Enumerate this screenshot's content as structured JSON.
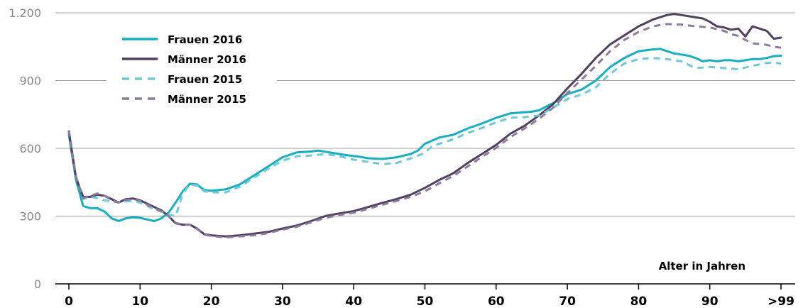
{
  "chart_data": {
    "type": "line",
    "title": "",
    "xlabel": "Alter in Jahren",
    "ylabel": "",
    "xlim": [
      0,
      100
    ],
    "ylim": [
      0,
      1200
    ],
    "grid": "horizontal",
    "legend_position": "top-left",
    "x_ticks": [
      0,
      10,
      20,
      30,
      40,
      50,
      60,
      70,
      80,
      90,
      100
    ],
    "x_tick_labels": [
      "0",
      "10",
      "20",
      "30",
      "40",
      "50",
      "60",
      "70",
      "80",
      "90",
      ">99"
    ],
    "y_ticks": [
      0,
      300,
      600,
      900,
      1200
    ],
    "y_tick_labels": [
      "0",
      "300",
      "600",
      "900",
      "1.200"
    ],
    "series": [
      {
        "name": "Frauen 2016",
        "color": "#18aec2",
        "dashed": false,
        "points": [
          [
            0,
            660
          ],
          [
            1,
            460
          ],
          [
            2,
            345
          ],
          [
            3,
            335
          ],
          [
            4,
            335
          ],
          [
            5,
            320
          ],
          [
            6,
            290
          ],
          [
            7,
            278
          ],
          [
            8,
            290
          ],
          [
            9,
            295
          ],
          [
            10,
            292
          ],
          [
            11,
            285
          ],
          [
            12,
            278
          ],
          [
            13,
            290
          ],
          [
            14,
            315
          ],
          [
            15,
            360
          ],
          [
            16,
            410
          ],
          [
            17,
            443
          ],
          [
            18,
            440
          ],
          [
            19,
            415
          ],
          [
            20,
            412
          ],
          [
            22,
            418
          ],
          [
            24,
            440
          ],
          [
            26,
            480
          ],
          [
            28,
            520
          ],
          [
            30,
            560
          ],
          [
            32,
            582
          ],
          [
            34,
            586
          ],
          [
            35,
            590
          ],
          [
            37,
            580
          ],
          [
            39,
            570
          ],
          [
            41,
            562
          ],
          [
            42,
            556
          ],
          [
            44,
            553
          ],
          [
            46,
            560
          ],
          [
            48,
            575
          ],
          [
            49,
            590
          ],
          [
            50,
            620
          ],
          [
            52,
            648
          ],
          [
            54,
            660
          ],
          [
            56,
            688
          ],
          [
            58,
            710
          ],
          [
            60,
            735
          ],
          [
            62,
            755
          ],
          [
            64,
            760
          ],
          [
            65,
            762
          ],
          [
            66,
            768
          ],
          [
            68,
            800
          ],
          [
            70,
            840
          ],
          [
            72,
            860
          ],
          [
            74,
            900
          ],
          [
            76,
            960
          ],
          [
            78,
            1000
          ],
          [
            80,
            1030
          ],
          [
            82,
            1038
          ],
          [
            83,
            1040
          ],
          [
            85,
            1020
          ],
          [
            87,
            1010
          ],
          [
            88,
            1000
          ],
          [
            89,
            985
          ],
          [
            90,
            990
          ],
          [
            91,
            985
          ],
          [
            92,
            990
          ],
          [
            93,
            990
          ],
          [
            94,
            985
          ],
          [
            95,
            990
          ],
          [
            96,
            995
          ],
          [
            97,
            995
          ],
          [
            98,
            1000
          ],
          [
            99,
            1008
          ],
          [
            100,
            1010
          ]
        ]
      },
      {
        "name": "Männer 2016",
        "color": "#514060",
        "dashed": false,
        "points": [
          [
            0,
            675
          ],
          [
            1,
            470
          ],
          [
            2,
            385
          ],
          [
            3,
            385
          ],
          [
            4,
            395
          ],
          [
            5,
            390
          ],
          [
            6,
            375
          ],
          [
            7,
            360
          ],
          [
            8,
            375
          ],
          [
            9,
            378
          ],
          [
            10,
            370
          ],
          [
            11,
            355
          ],
          [
            12,
            340
          ],
          [
            13,
            325
          ],
          [
            14,
            300
          ],
          [
            15,
            268
          ],
          [
            16,
            262
          ],
          [
            17,
            262
          ],
          [
            18,
            245
          ],
          [
            19,
            220
          ],
          [
            20,
            215
          ],
          [
            22,
            210
          ],
          [
            24,
            215
          ],
          [
            26,
            222
          ],
          [
            28,
            230
          ],
          [
            30,
            245
          ],
          [
            32,
            258
          ],
          [
            34,
            278
          ],
          [
            36,
            300
          ],
          [
            38,
            312
          ],
          [
            40,
            322
          ],
          [
            42,
            340
          ],
          [
            44,
            358
          ],
          [
            46,
            375
          ],
          [
            48,
            395
          ],
          [
            50,
            425
          ],
          [
            52,
            460
          ],
          [
            54,
            490
          ],
          [
            56,
            535
          ],
          [
            58,
            575
          ],
          [
            60,
            615
          ],
          [
            62,
            665
          ],
          [
            64,
            700
          ],
          [
            66,
            745
          ],
          [
            68,
            795
          ],
          [
            70,
            865
          ],
          [
            72,
            930
          ],
          [
            74,
            1000
          ],
          [
            76,
            1060
          ],
          [
            78,
            1100
          ],
          [
            80,
            1140
          ],
          [
            82,
            1170
          ],
          [
            84,
            1190
          ],
          [
            85,
            1195
          ],
          [
            86,
            1190
          ],
          [
            88,
            1180
          ],
          [
            89,
            1175
          ],
          [
            90,
            1160
          ],
          [
            91,
            1140
          ],
          [
            92,
            1135
          ],
          [
            93,
            1125
          ],
          [
            94,
            1130
          ],
          [
            95,
            1095
          ],
          [
            96,
            1140
          ],
          [
            97,
            1130
          ],
          [
            98,
            1120
          ],
          [
            99,
            1085
          ],
          [
            100,
            1090
          ]
        ]
      },
      {
        "name": "Frauen 2015",
        "color": "#6ec9d8",
        "dashed": true,
        "points": [
          [
            0,
            680
          ],
          [
            1,
            480
          ],
          [
            2,
            375
          ],
          [
            3,
            385
          ],
          [
            4,
            380
          ],
          [
            5,
            370
          ],
          [
            6,
            365
          ],
          [
            7,
            360
          ],
          [
            8,
            365
          ],
          [
            9,
            368
          ],
          [
            10,
            360
          ],
          [
            11,
            345
          ],
          [
            12,
            330
          ],
          [
            13,
            320
          ],
          [
            14,
            305
          ],
          [
            15,
            300
          ],
          [
            16,
            400
          ],
          [
            17,
            440
          ],
          [
            18,
            435
          ],
          [
            19,
            410
          ],
          [
            20,
            405
          ],
          [
            22,
            405
          ],
          [
            24,
            430
          ],
          [
            26,
            470
          ],
          [
            28,
            510
          ],
          [
            30,
            545
          ],
          [
            32,
            565
          ],
          [
            34,
            568
          ],
          [
            36,
            575
          ],
          [
            38,
            565
          ],
          [
            40,
            550
          ],
          [
            42,
            540
          ],
          [
            44,
            530
          ],
          [
            46,
            535
          ],
          [
            48,
            555
          ],
          [
            50,
            580
          ],
          [
            51,
            610
          ],
          [
            52,
            620
          ],
          [
            54,
            640
          ],
          [
            56,
            668
          ],
          [
            58,
            690
          ],
          [
            60,
            715
          ],
          [
            62,
            735
          ],
          [
            64,
            738
          ],
          [
            66,
            745
          ],
          [
            68,
            780
          ],
          [
            70,
            818
          ],
          [
            72,
            838
          ],
          [
            74,
            870
          ],
          [
            76,
            930
          ],
          [
            78,
            975
          ],
          [
            80,
            995
          ],
          [
            82,
            1000
          ],
          [
            84,
            995
          ],
          [
            86,
            985
          ],
          [
            88,
            955
          ],
          [
            90,
            960
          ],
          [
            92,
            955
          ],
          [
            94,
            950
          ],
          [
            96,
            965
          ],
          [
            98,
            978
          ],
          [
            99,
            980
          ],
          [
            100,
            975
          ]
        ]
      },
      {
        "name": "Männer 2015",
        "color": "#8e7a9c",
        "dashed": true,
        "points": [
          [
            0,
            680
          ],
          [
            1,
            470
          ],
          [
            2,
            380
          ],
          [
            3,
            390
          ],
          [
            4,
            400
          ],
          [
            5,
            390
          ],
          [
            6,
            370
          ],
          [
            7,
            360
          ],
          [
            8,
            372
          ],
          [
            9,
            375
          ],
          [
            10,
            368
          ],
          [
            11,
            350
          ],
          [
            12,
            335
          ],
          [
            13,
            320
          ],
          [
            14,
            300
          ],
          [
            15,
            270
          ],
          [
            16,
            262
          ],
          [
            17,
            262
          ],
          [
            18,
            243
          ],
          [
            19,
            218
          ],
          [
            20,
            212
          ],
          [
            22,
            205
          ],
          [
            24,
            210
          ],
          [
            26,
            215
          ],
          [
            28,
            225
          ],
          [
            30,
            240
          ],
          [
            32,
            253
          ],
          [
            34,
            272
          ],
          [
            36,
            292
          ],
          [
            38,
            305
          ],
          [
            40,
            315
          ],
          [
            42,
            332
          ],
          [
            44,
            350
          ],
          [
            46,
            367
          ],
          [
            48,
            385
          ],
          [
            50,
            410
          ],
          [
            52,
            445
          ],
          [
            54,
            478
          ],
          [
            56,
            520
          ],
          [
            58,
            562
          ],
          [
            60,
            602
          ],
          [
            62,
            650
          ],
          [
            64,
            688
          ],
          [
            66,
            730
          ],
          [
            68,
            780
          ],
          [
            70,
            845
          ],
          [
            72,
            905
          ],
          [
            74,
            965
          ],
          [
            76,
            1030
          ],
          [
            78,
            1080
          ],
          [
            80,
            1115
          ],
          [
            82,
            1140
          ],
          [
            84,
            1150
          ],
          [
            86,
            1148
          ],
          [
            88,
            1140
          ],
          [
            90,
            1135
          ],
          [
            92,
            1120
          ],
          [
            93,
            1105
          ],
          [
            94,
            1098
          ],
          [
            95,
            1080
          ],
          [
            96,
            1065
          ],
          [
            98,
            1058
          ],
          [
            99,
            1050
          ],
          [
            100,
            1045
          ]
        ]
      }
    ]
  }
}
